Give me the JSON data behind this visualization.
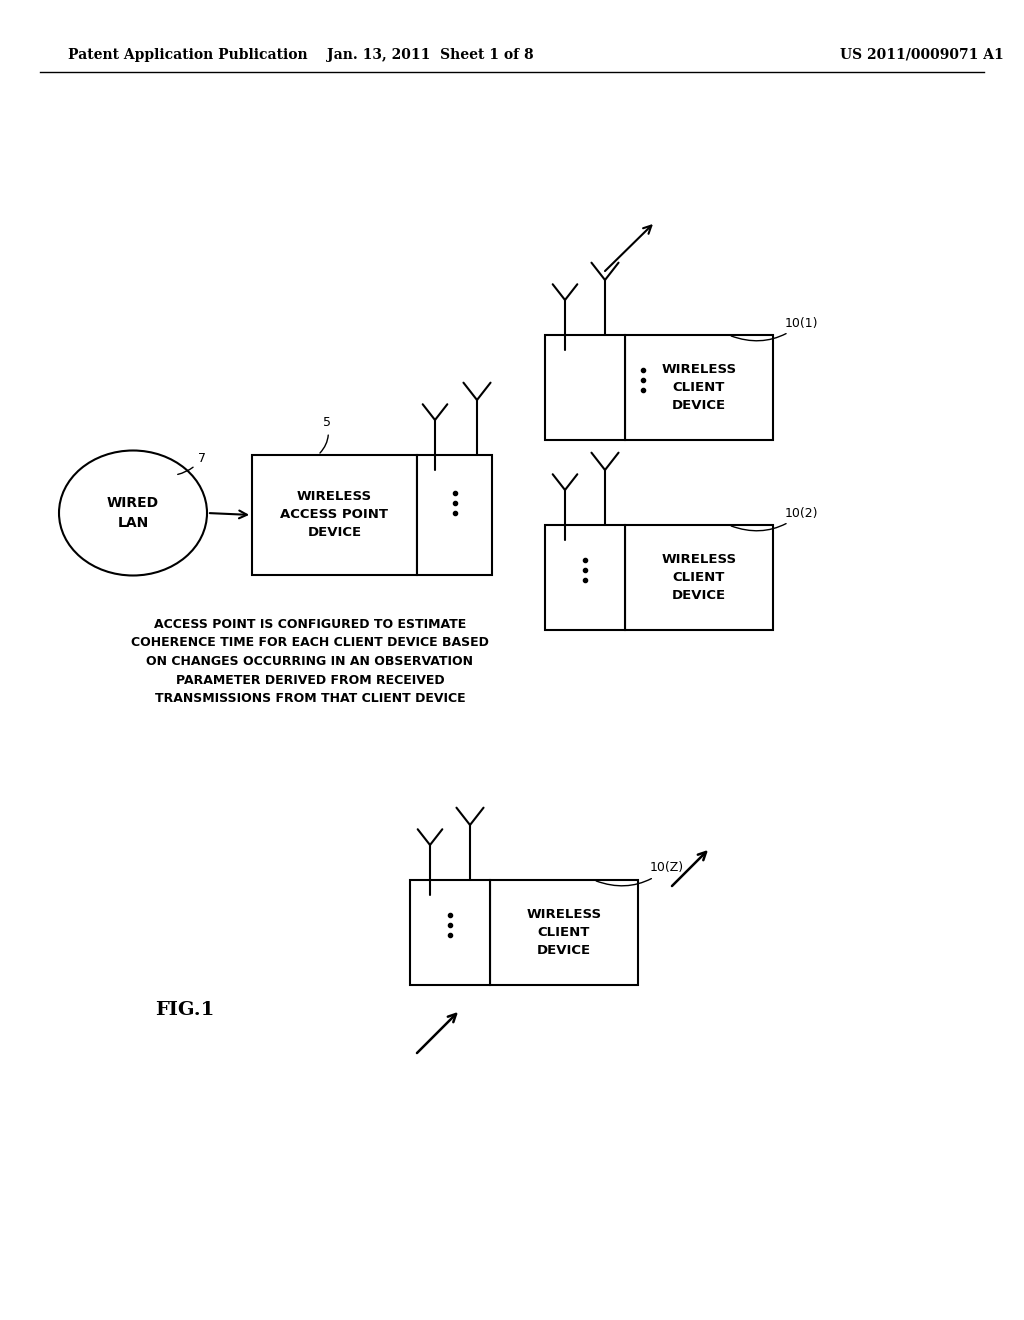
{
  "header_left": "Patent Application Publication",
  "header_mid": "Jan. 13, 2011  Sheet 1 of 8",
  "header_right": "US 2011/0009071 A1",
  "fig_label": "FIG.1",
  "bg_color": "#ffffff",
  "text_color": "#000000",
  "annotation_text": "ACCESS POINT IS CONFIGURED TO ESTIMATE\nCOHERENCE TIME FOR EACH CLIENT DEVICE BASED\nON CHANGES OCCURRING IN AN OBSERVATION\nPARAMETER DERIVED FROM RECEIVED\nTRANSMISSIONS FROM THAT CLIENT DEVICE",
  "wired_lan_label": "WIRED\nLAN",
  "wired_lan_id": "7",
  "ap_label": "WIRELESS\nACCESS POINT\nDEVICE",
  "ap_id": "5",
  "client1_label": "WIRELESS\nCLIENT\nDEVICE",
  "client1_id": "10(1)",
  "client2_label": "WIRELESS\nCLIENT\nDEVICE",
  "client2_id": "10(2)",
  "clientz_label": "WIRELESS\nCLIENT\nDEVICE",
  "clientz_id": "10(Z)"
}
